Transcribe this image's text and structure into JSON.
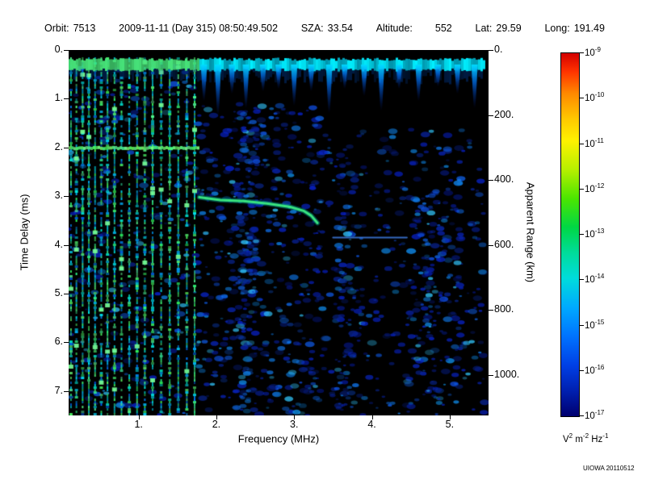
{
  "header": {
    "fields": [
      {
        "label": "Orbit:",
        "value": "7513"
      },
      {
        "label": "",
        "value": "2009-11-11 (Day 315) 08:50:49.502"
      },
      {
        "label": "SZA:",
        "value": "33.54"
      },
      {
        "label": "Altitude:",
        "value": "552",
        "wide_gap": true
      },
      {
        "label": "Lat:",
        "value": "29.59"
      },
      {
        "label": "Long:",
        "value": "191.49"
      }
    ]
  },
  "footer": {
    "credit": "UIOWA 20110512"
  },
  "chart_data": {
    "type": "heatmap",
    "x_axis": {
      "label": "Frequency (MHz)",
      "range": [
        0.1,
        5.5
      ],
      "ticks": [
        1,
        2,
        3,
        4,
        5
      ]
    },
    "y_axis_left": {
      "label": "Time Delay (ms)",
      "range": [
        0,
        7.5
      ],
      "ticks": [
        0,
        1,
        2,
        3,
        4,
        5,
        6,
        7
      ]
    },
    "y_axis_right": {
      "label": "Apparent Range (km)",
      "km_per_ms": 150,
      "ticks": [
        0,
        200,
        400,
        600,
        800,
        1000
      ]
    },
    "background": "#000000",
    "colorbar": {
      "tick_exponents": [
        -9,
        -10,
        -11,
        -12,
        -13,
        -14,
        -15,
        -16,
        -17
      ],
      "unit_parts": [
        [
          "V",
          "2"
        ],
        [
          "m",
          "-2"
        ],
        [
          "Hz",
          "-1"
        ]
      ],
      "gradient": [
        {
          "stop": 0.0,
          "color": "#d40000"
        },
        {
          "stop": 0.05,
          "color": "#ff3300"
        },
        {
          "stop": 0.11,
          "color": "#ff8800"
        },
        {
          "stop": 0.18,
          "color": "#ffc800"
        },
        {
          "stop": 0.24,
          "color": "#fff200"
        },
        {
          "stop": 0.32,
          "color": "#b8f000"
        },
        {
          "stop": 0.4,
          "color": "#4ce600"
        },
        {
          "stop": 0.48,
          "color": "#00d846"
        },
        {
          "stop": 0.55,
          "color": "#00dc9b"
        },
        {
          "stop": 0.62,
          "color": "#00dcdc"
        },
        {
          "stop": 0.7,
          "color": "#00aaff"
        },
        {
          "stop": 0.78,
          "color": "#0073ff"
        },
        {
          "stop": 0.86,
          "color": "#0040e6"
        },
        {
          "stop": 0.93,
          "color": "#0020b0"
        },
        {
          "stop": 1.0,
          "color": "#000070"
        }
      ]
    },
    "features": {
      "surface_reflection_band": {
        "delay_ms": 0.3,
        "thickness_ms": 0.28,
        "freq_range": [
          0.1,
          5.45
        ]
      },
      "surface_icicles": [
        {
          "freq": 1.84,
          "depth_ms": 0.75
        },
        {
          "freq": 2.02,
          "depth_ms": 1.05
        },
        {
          "freq": 2.2,
          "depth_ms": 0.6
        },
        {
          "freq": 2.38,
          "depth_ms": 0.9
        },
        {
          "freq": 2.6,
          "depth_ms": 0.55
        },
        {
          "freq": 2.8,
          "depth_ms": 0.5
        },
        {
          "freq": 3.0,
          "depth_ms": 0.85
        },
        {
          "freq": 3.22,
          "depth_ms": 0.55
        },
        {
          "freq": 3.45,
          "depth_ms": 1.0
        },
        {
          "freq": 3.65,
          "depth_ms": 0.5
        },
        {
          "freq": 3.9,
          "depth_ms": 0.65
        },
        {
          "freq": 4.12,
          "depth_ms": 0.95
        },
        {
          "freq": 4.35,
          "depth_ms": 0.5
        },
        {
          "freq": 4.6,
          "depth_ms": 0.75
        },
        {
          "freq": 4.85,
          "depth_ms": 0.45
        },
        {
          "freq": 5.1,
          "depth_ms": 0.6
        },
        {
          "freq": 5.32,
          "depth_ms": 0.9
        }
      ],
      "plasma_harmonic_stripes": {
        "frequencies": [
          0.13,
          0.2,
          0.28,
          0.36,
          0.44,
          0.52,
          0.6,
          0.69,
          0.78,
          0.88,
          0.98,
          1.08,
          1.18,
          1.29,
          1.4,
          1.51,
          1.62,
          1.72
        ],
        "delay_range": [
          0.15,
          7.5
        ]
      },
      "horizontal_line": {
        "delay_ms": 2.0,
        "freq_range": [
          0.1,
          1.76
        ]
      },
      "ionospheric_echo_trace": {
        "points": [
          [
            1.78,
            3.02
          ],
          [
            2.05,
            3.08
          ],
          [
            2.35,
            3.1
          ],
          [
            2.65,
            3.15
          ],
          [
            2.95,
            3.22
          ],
          [
            3.12,
            3.3
          ],
          [
            3.22,
            3.4
          ],
          [
            3.3,
            3.55
          ]
        ]
      },
      "faint_horizontal_echo": {
        "delay_ms": 3.85,
        "freq_range": [
          3.5,
          4.45
        ]
      },
      "diffuse_echo_regions": [
        {
          "freq_range": [
            1.75,
            3.35
          ],
          "delay_range": [
            1.1,
            7.5
          ],
          "density": 0.5
        },
        {
          "freq_range": [
            3.35,
            5.45
          ],
          "delay_range": [
            1.6,
            7.5
          ],
          "density": 0.3
        },
        {
          "freq_range": [
            2.3,
            2.52
          ],
          "delay_range": [
            1.3,
            7.3
          ],
          "density": 0.9
        },
        {
          "freq_range": [
            3.55,
            3.78
          ],
          "delay_range": [
            2.2,
            7.4
          ],
          "density": 0.7
        },
        {
          "freq_range": [
            4.55,
            5.15
          ],
          "delay_range": [
            2.8,
            7.2
          ],
          "density": 0.45
        },
        {
          "freq_range": [
            0.1,
            1.75
          ],
          "delay_range": [
            0.3,
            7.5
          ],
          "density": 0.25
        }
      ]
    }
  }
}
